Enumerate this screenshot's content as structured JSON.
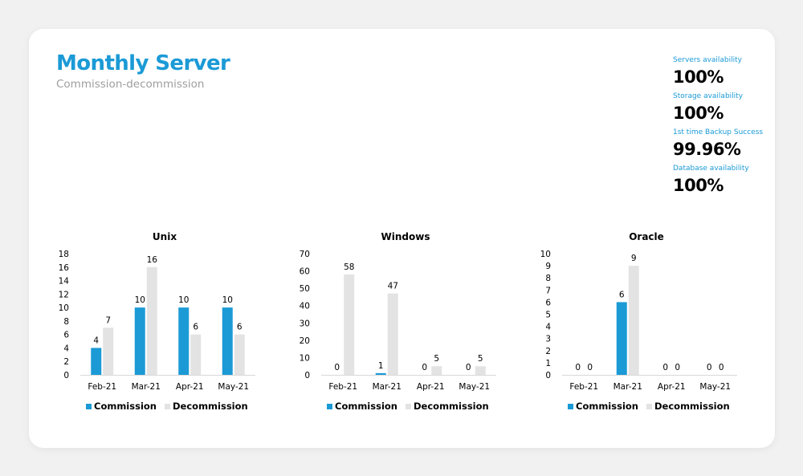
{
  "header": {
    "title": "Monthly Server",
    "subtitle": "Commission-decommission"
  },
  "kpis": [
    {
      "label": "Servers availability",
      "value": "100%"
    },
    {
      "label": "Storage availability",
      "value": "100%"
    },
    {
      "label": "1st time Backup Success",
      "value": "99.96%"
    },
    {
      "label": "Database availability",
      "value": "100%"
    }
  ],
  "colors": {
    "commission": "#1b9ad6",
    "decommission": "#e3e3e3",
    "title": "#1b9ad6",
    "axis": "#d9d9d9"
  },
  "chart_data": [
    {
      "type": "bar",
      "title": "Unix",
      "categories": [
        "Feb-21",
        "Mar-21",
        "Apr-21",
        "May-21"
      ],
      "series": [
        {
          "name": "Commission",
          "values": [
            4,
            10,
            10,
            10
          ]
        },
        {
          "name": "Decommission",
          "values": [
            7,
            16,
            6,
            6
          ]
        }
      ],
      "ylim": [
        0,
        18
      ],
      "yticks": [
        0,
        2,
        4,
        6,
        8,
        10,
        12,
        14,
        16,
        18
      ],
      "legend": "bottom"
    },
    {
      "type": "bar",
      "title": "Windows",
      "categories": [
        "Feb-21",
        "Mar-21",
        "Apr-21",
        "May-21"
      ],
      "series": [
        {
          "name": "Commission",
          "values": [
            0,
            1,
            0,
            0
          ]
        },
        {
          "name": "Decommission",
          "values": [
            58,
            47,
            5,
            5
          ]
        }
      ],
      "ylim": [
        0,
        70
      ],
      "yticks": [
        0,
        10,
        20,
        30,
        40,
        50,
        60,
        70
      ],
      "legend": "bottom"
    },
    {
      "type": "bar",
      "title": "Oracle",
      "categories": [
        "Feb-21",
        "Mar-21",
        "Apr-21",
        "May-21"
      ],
      "series": [
        {
          "name": "Commission",
          "values": [
            0,
            6,
            0,
            0
          ]
        },
        {
          "name": "Decommission",
          "values": [
            0,
            9,
            0,
            0
          ]
        }
      ],
      "ylim": [
        0,
        10
      ],
      "yticks": [
        0,
        1,
        2,
        3,
        4,
        5,
        6,
        7,
        8,
        9,
        10
      ],
      "legend": "bottom"
    }
  ]
}
